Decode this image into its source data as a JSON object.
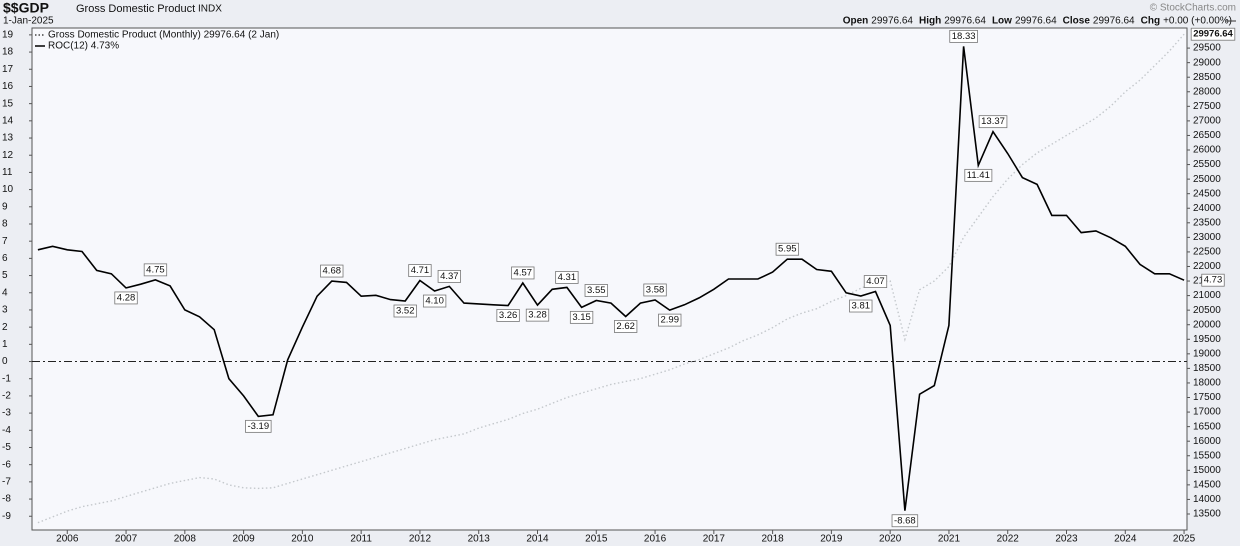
{
  "header": {
    "symbol": "$$GDP",
    "name": "Gross Domestic Product",
    "exchange": "INDX",
    "date": "1-Jan-2025",
    "copyright": "© StockCharts.com",
    "quote": [
      {
        "label": "Open",
        "value": "29976.64"
      },
      {
        "label": "High",
        "value": "29976.64"
      },
      {
        "label": "Low",
        "value": "29976.64"
      },
      {
        "label": "Close",
        "value": "29976.64"
      },
      {
        "label": "Chg",
        "value": "+0.00 (+0.00%)"
      }
    ]
  },
  "chart_data": {
    "type": "line",
    "x": [
      2005.5,
      2005.75,
      2006,
      2006.25,
      2006.5,
      2006.75,
      2007,
      2007.25,
      2007.5,
      2007.75,
      2008,
      2008.25,
      2008.5,
      2008.75,
      2009,
      2009.25,
      2009.5,
      2009.75,
      2010,
      2010.25,
      2010.5,
      2010.75,
      2011,
      2011.25,
      2011.5,
      2011.75,
      2012,
      2012.25,
      2012.5,
      2012.75,
      2013,
      2013.25,
      2013.5,
      2013.75,
      2014,
      2014.25,
      2014.5,
      2014.75,
      2015,
      2015.25,
      2015.5,
      2015.75,
      2016,
      2016.25,
      2016.5,
      2016.75,
      2017,
      2017.25,
      2017.5,
      2017.75,
      2018,
      2018.25,
      2018.5,
      2018.75,
      2019,
      2019.25,
      2019.5,
      2019.75,
      2020,
      2020.25,
      2020.5,
      2020.75,
      2021,
      2021.25,
      2021.5,
      2021.75,
      2022,
      2022.25,
      2022.5,
      2022.75,
      2023,
      2023.25,
      2023.5,
      2023.75,
      2024,
      2024.25,
      2024.5,
      2024.75,
      2025
    ],
    "series": [
      {
        "name": "Gross Domestic Product (Monthly) 29976.64 (2 Jan)",
        "color": "#c4c8cc",
        "axis": "y2",
        "style": "dotted",
        "values": [
          13200,
          13400,
          13600,
          13750,
          13850,
          13950,
          14100,
          14250,
          14400,
          14550,
          14650,
          14750,
          14700,
          14500,
          14400,
          14380,
          14400,
          14550,
          14700,
          14850,
          15000,
          15150,
          15300,
          15450,
          15600,
          15750,
          15900,
          16050,
          16150,
          16250,
          16450,
          16600,
          16750,
          16950,
          17100,
          17300,
          17500,
          17650,
          17800,
          17950,
          18050,
          18150,
          18300,
          18450,
          18650,
          18800,
          19000,
          19200,
          19450,
          19650,
          19900,
          20200,
          20400,
          20550,
          20800,
          21000,
          21250,
          21450,
          21500,
          19500,
          21200,
          21500,
          22000,
          23000,
          23700,
          24400,
          25000,
          25500,
          25900,
          26200,
          26500,
          26800,
          27100,
          27500,
          28000,
          28400,
          28900,
          29400,
          29976.64
        ],
        "value_labels": [
          null,
          null,
          null,
          null,
          null,
          null,
          null,
          null,
          null,
          null,
          null,
          null,
          null,
          null,
          null,
          null,
          null,
          null,
          null,
          null,
          null,
          null,
          null,
          null,
          null,
          null,
          null,
          null,
          null,
          null,
          null,
          null,
          null,
          null,
          null,
          null,
          null,
          null,
          null,
          null,
          null,
          null,
          null,
          null,
          null,
          null,
          null,
          null,
          null,
          null,
          null,
          null,
          null,
          null,
          null,
          null,
          null,
          null,
          null,
          null,
          null,
          null,
          null,
          null,
          null,
          null,
          null,
          null,
          null,
          null,
          null,
          null,
          null,
          null,
          null,
          null,
          null,
          null,
          "29976.64"
        ]
      },
      {
        "name": "ROC(12) 4.73%",
        "color": "#000000",
        "axis": "y",
        "style": "solid",
        "values": [
          6.5,
          6.7,
          6.5,
          6.4,
          5.3,
          5.1,
          4.28,
          4.5,
          4.75,
          4.4,
          3.0,
          2.6,
          1.85,
          -1.0,
          -2.0,
          -3.19,
          -3.1,
          0.1,
          2.0,
          3.8,
          4.68,
          4.6,
          3.8,
          3.85,
          3.6,
          3.52,
          4.71,
          4.1,
          4.37,
          3.4,
          3.35,
          3.3,
          3.26,
          4.57,
          3.28,
          4.2,
          4.31,
          3.15,
          3.55,
          3.4,
          2.62,
          3.4,
          3.58,
          2.99,
          3.3,
          3.7,
          4.2,
          4.8,
          4.8,
          4.8,
          5.2,
          5.95,
          5.95,
          5.35,
          5.25,
          4.0,
          3.81,
          4.07,
          2.1,
          -8.68,
          -1.9,
          -1.4,
          2.1,
          18.33,
          11.41,
          13.37,
          12.1,
          10.7,
          10.3,
          8.5,
          8.5,
          7.5,
          7.6,
          7.2,
          6.7,
          5.65,
          5.1,
          5.1,
          4.73
        ],
        "value_labels": [
          null,
          null,
          null,
          null,
          null,
          null,
          "4.28",
          null,
          "4.75",
          null,
          null,
          null,
          null,
          null,
          null,
          "-3.19",
          null,
          null,
          null,
          null,
          "4.68",
          null,
          null,
          null,
          null,
          "3.52",
          "4.71",
          "4.10",
          "4.37",
          null,
          null,
          null,
          "3.26",
          "4.57",
          "3.28",
          null,
          "4.31",
          "3.15",
          "3.55",
          null,
          "2.62",
          null,
          "3.58",
          "2.99",
          null,
          null,
          null,
          null,
          null,
          null,
          null,
          "5.95",
          null,
          null,
          null,
          null,
          "3.81",
          "4.07",
          null,
          "-8.68",
          null,
          null,
          null,
          "18.33",
          "11.41",
          "13.37",
          null,
          null,
          null,
          null,
          null,
          null,
          null,
          null,
          null,
          null,
          null,
          null,
          "4.73"
        ]
      }
    ],
    "xlim": [
      2005.4,
      2025.05
    ],
    "xticks": [
      2006,
      2007,
      2008,
      2009,
      2010,
      2011,
      2012,
      2013,
      2014,
      2015,
      2016,
      2017,
      2018,
      2019,
      2020,
      2021,
      2022,
      2023,
      2024,
      2025
    ],
    "ylim": [
      -9.8,
      19.4
    ],
    "yticks": [
      -9,
      -8,
      -7,
      -6,
      -5,
      -4,
      -3,
      -2,
      -1,
      0,
      1,
      2,
      3,
      4,
      5,
      6,
      7,
      8,
      9,
      10,
      11,
      12,
      13,
      14,
      15,
      16,
      17,
      18,
      19
    ],
    "y2lim": [
      12950,
      30190
    ],
    "y2ticks": [
      13500,
      14000,
      14500,
      15000,
      15500,
      16000,
      16500,
      17000,
      17500,
      18000,
      18500,
      19000,
      19500,
      20000,
      20500,
      21000,
      21500,
      22000,
      22500,
      23000,
      23500,
      24000,
      24500,
      25000,
      25500,
      26000,
      26500,
      27000,
      27500,
      28000,
      28500,
      29000,
      29500
    ],
    "zero_line": true,
    "grid": false
  }
}
